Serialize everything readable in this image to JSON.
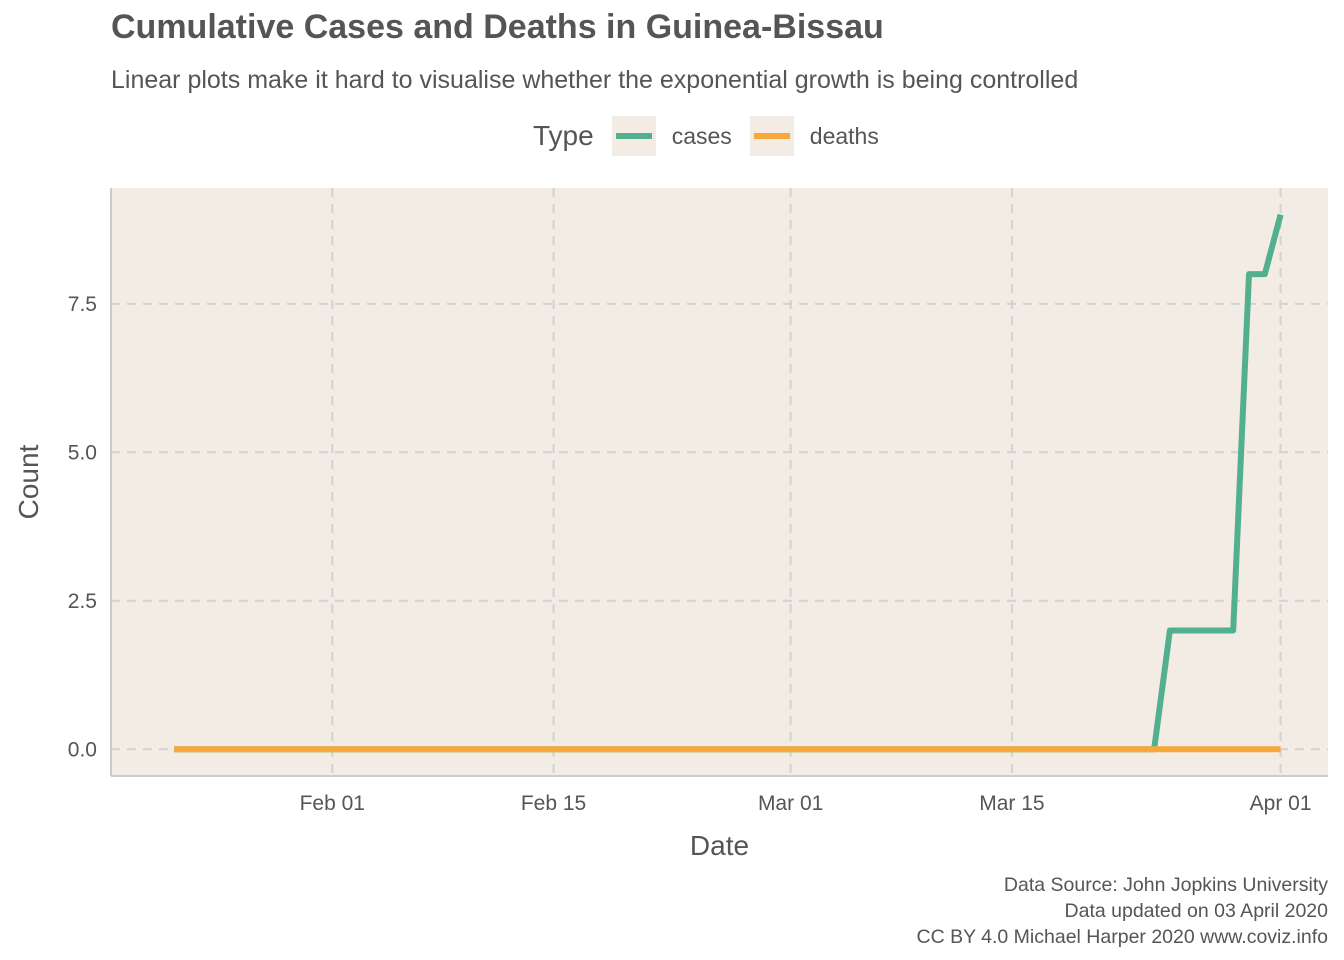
{
  "title": "Cumulative Cases and Deaths in Guinea-Bissau",
  "subtitle": "Linear plots make it hard to visualise whether the exponential growth is being controlled",
  "legend": {
    "title": "Type",
    "items": [
      {
        "label": "cases",
        "color": "#52b08e"
      },
      {
        "label": "deaths",
        "color": "#f7a83a"
      }
    ]
  },
  "caption": [
    "Data Source: John Jopkins University",
    "Data updated on 03 April 2020",
    "CC BY 4.0 Michael Harper 2020 www.coviz.info"
  ],
  "chart_data": {
    "type": "line",
    "xlabel": "Date",
    "ylabel": "Count",
    "x_ticks": [
      {
        "date": "2020-02-01",
        "label": "Feb 01"
      },
      {
        "date": "2020-02-15",
        "label": "Feb 15"
      },
      {
        "date": "2020-03-01",
        "label": "Mar 01"
      },
      {
        "date": "2020-03-15",
        "label": "Mar 15"
      },
      {
        "date": "2020-04-01",
        "label": "Apr 01"
      }
    ],
    "y_ticks": [
      0,
      2.5,
      5,
      7.5
    ],
    "y_tick_labels": [
      "0.0",
      "2.5",
      "5.0",
      "7.5"
    ],
    "xlim": [
      "2020-01-18",
      "2020-04-04"
    ],
    "ylim": [
      -0.45,
      9.45
    ],
    "grid": true,
    "legend_position": "top",
    "background": "#f2ece5",
    "series": [
      {
        "name": "cases",
        "color": "#52b08e",
        "points": [
          [
            "2020-01-22",
            0
          ],
          [
            "2020-03-24",
            0
          ],
          [
            "2020-03-25",
            2
          ],
          [
            "2020-03-26",
            2
          ],
          [
            "2020-03-27",
            2
          ],
          [
            "2020-03-28",
            2
          ],
          [
            "2020-03-29",
            2
          ],
          [
            "2020-03-30",
            8
          ],
          [
            "2020-03-31",
            8
          ],
          [
            "2020-04-01",
            9
          ]
        ]
      },
      {
        "name": "deaths",
        "color": "#f7a83a",
        "points": [
          [
            "2020-01-22",
            0
          ],
          [
            "2020-04-01",
            0
          ]
        ]
      }
    ]
  }
}
